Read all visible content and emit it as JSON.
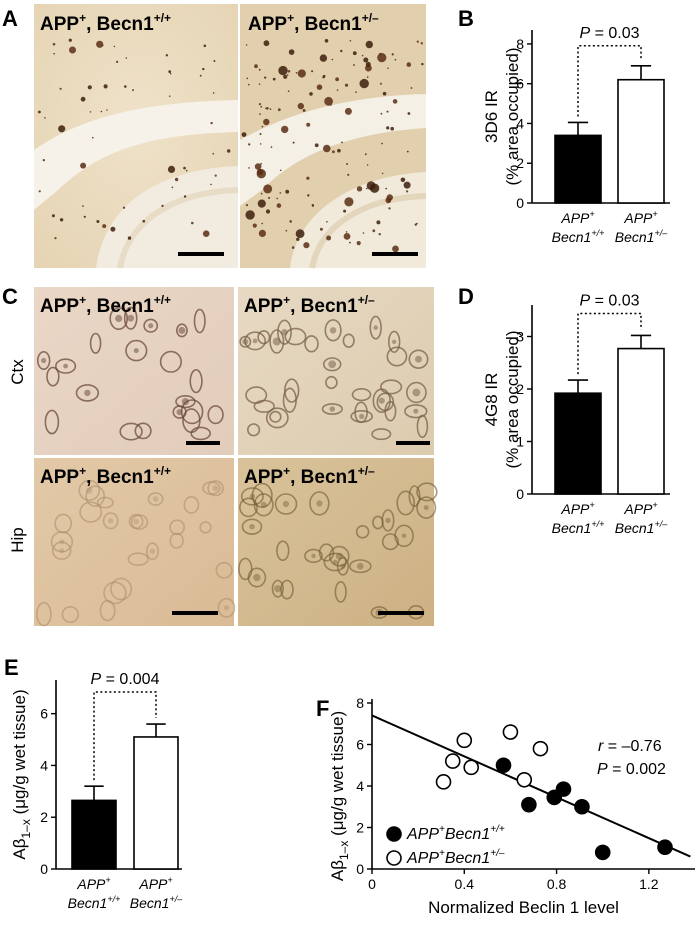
{
  "panels": {
    "A": {
      "label": "A",
      "images": [
        {
          "genotype": "APP",
          "sup1": "+",
          "gene": ", Becn1",
          "sup2": "+/+"
        },
        {
          "genotype": "APP",
          "sup1": "+",
          "gene": ", Becn1",
          "sup2": "+/–"
        }
      ]
    },
    "C": {
      "label": "C",
      "row_labels": [
        "Ctx",
        "Hip"
      ],
      "images": [
        {
          "genotype": "APP",
          "sup1": "+",
          "gene": ", Becn1",
          "sup2": "+/+"
        },
        {
          "genotype": "APP",
          "sup1": "+",
          "gene": ", Becn1",
          "sup2": "+/–"
        },
        {
          "genotype": "APP",
          "sup1": "+",
          "gene": ", Becn1",
          "sup2": "+/+"
        },
        {
          "genotype": "APP",
          "sup1": "+",
          "gene": ", Becn1",
          "sup2": "+/–"
        }
      ]
    }
  },
  "chart_data": [
    {
      "panel": "B",
      "type": "bar",
      "categories": [
        {
          "l1": "APP",
          "s1": "+",
          "l2": "Becn1",
          "s2": "+/+"
        },
        {
          "l1": "APP",
          "s1": "+",
          "l2": "Becn1",
          "s2": "+/–"
        }
      ],
      "values": [
        3.4,
        6.2
      ],
      "errors": [
        0.65,
        0.7
      ],
      "fills": [
        "#000000",
        "#ffffff"
      ],
      "ylabel1": "3D6 IR",
      "ylabel2": "(% area occupied)",
      "yticks": [
        0,
        2,
        4,
        6,
        8
      ],
      "ylim": [
        0,
        8.7
      ],
      "pvalue": "= 0.03"
    },
    {
      "panel": "D",
      "type": "bar",
      "categories": [
        {
          "l1": "APP",
          "s1": "+",
          "l2": "Becn1",
          "s2": "+/+"
        },
        {
          "l1": "APP",
          "s1": "+",
          "l2": "Becn1",
          "s2": "+/–"
        }
      ],
      "values": [
        1.92,
        2.77
      ],
      "errors": [
        0.25,
        0.25
      ],
      "fills": [
        "#000000",
        "#ffffff"
      ],
      "ylabel1": "4G8 IR",
      "ylabel2": "(% area occupied)",
      "yticks": [
        0,
        1,
        2,
        3
      ],
      "ylim": [
        0,
        3.6
      ],
      "pvalue": "= 0.03"
    },
    {
      "panel": "E",
      "type": "bar",
      "categories": [
        {
          "l1": "APP",
          "s1": "+",
          "l2": "Becn1",
          "s2": "+/+"
        },
        {
          "l1": "APP",
          "s1": "+",
          "l2": "Becn1",
          "s2": "+/–"
        }
      ],
      "values": [
        2.65,
        5.1
      ],
      "errors": [
        0.55,
        0.5
      ],
      "fills": [
        "#000000",
        "#ffffff"
      ],
      "ylabel_main": "Aβ",
      "ylabel_sub": "1–x",
      "ylabel_rest": " (μg/g wet tissue)",
      "yticks": [
        0,
        2,
        4,
        6
      ],
      "ylim": [
        0,
        7.3
      ],
      "pvalue": "= 0.004"
    },
    {
      "panel": "F",
      "type": "scatter",
      "xlabel": "Normalized Beclin 1 level",
      "ylabel_main": "Aβ",
      "ylabel_sub": "1–x",
      "ylabel_rest": " (μg/g wet tissue)",
      "xlim": [
        0,
        1.4
      ],
      "ylim": [
        0,
        8
      ],
      "xticks": [
        0,
        0.4,
        0.8,
        1.2
      ],
      "yticks": [
        0,
        2,
        4,
        6,
        8
      ],
      "stats": {
        "r": "= –0.76",
        "p": "= 0.002"
      },
      "regression": {
        "x1": 0,
        "y1": 7.4,
        "x2": 1.38,
        "y2": 0.6
      },
      "series": [
        {
          "name": "APP",
          "name_sup": "+",
          "name_gene": "Becn1",
          "name_sup2": "+/+",
          "filled": true,
          "points": [
            [
              0.57,
              5.0
            ],
            [
              0.68,
              3.1
            ],
            [
              0.79,
              3.45
            ],
            [
              0.83,
              3.85
            ],
            [
              0.91,
              3.0
            ],
            [
              1.0,
              0.8
            ],
            [
              1.27,
              1.05
            ]
          ]
        },
        {
          "name": "APP",
          "name_sup": "+",
          "name_gene": "Becn1",
          "name_sup2": "+/–",
          "filled": false,
          "points": [
            [
              0.31,
              4.2
            ],
            [
              0.35,
              5.2
            ],
            [
              0.4,
              6.2
            ],
            [
              0.43,
              4.9
            ],
            [
              0.6,
              6.6
            ],
            [
              0.66,
              4.3
            ],
            [
              0.73,
              5.8
            ]
          ]
        }
      ],
      "legend": "bottom-left"
    }
  ],
  "chart_labels": [
    "B",
    "D",
    "E",
    "F"
  ]
}
